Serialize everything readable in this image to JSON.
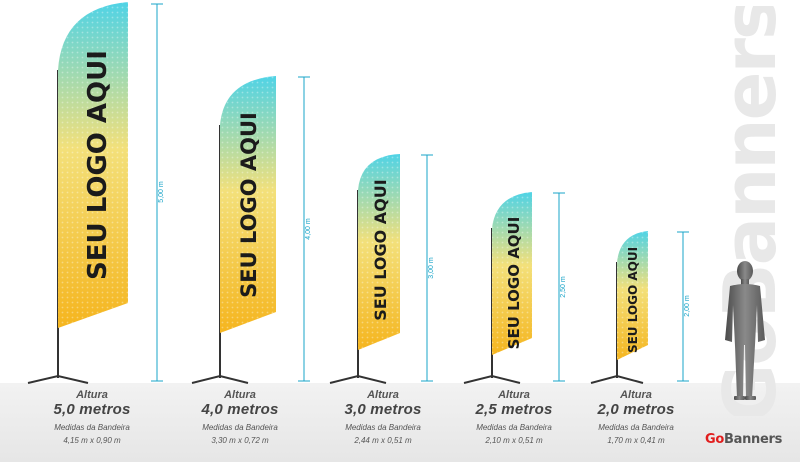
{
  "watermark": "GoBanners",
  "brand": {
    "go": "Go",
    "name": "Banners"
  },
  "flags": [
    {
      "logo_text": "SEU LOGO AQUI",
      "dimension_label": "5,00 m",
      "altura_label": "Altura",
      "height_label": "5,0 metros",
      "medidas_label": "Medidas da Bandeira",
      "size": "4,15 m x 0,90 m"
    },
    {
      "logo_text": "SEU LOGO AQUI",
      "dimension_label": "4,00 m",
      "altura_label": "Altura",
      "height_label": "4,0 metros",
      "medidas_label": "Medidas da Bandeira",
      "size": "3,30 m x 0,72 m"
    },
    {
      "logo_text": "SEU LOGO AQUI",
      "dimension_label": "3,00 m",
      "altura_label": "Altura",
      "height_label": "3,0 metros",
      "medidas_label": "Medidas da Bandeira",
      "size": "2,44 m x 0,51 m"
    },
    {
      "logo_text": "SEU LOGO AQUI",
      "dimension_label": "2,50 m",
      "altura_label": "Altura",
      "height_label": "2,5 metros",
      "medidas_label": "Medidas da Bandeira",
      "size": "2,10 m x 0,51 m"
    },
    {
      "logo_text": "SEU LOGO AQUI",
      "dimension_label": "2,00 m",
      "altura_label": "Altura",
      "height_label": "2,0 metros",
      "medidas_label": "Medidas da Bandeira",
      "size": "1,70 m x 0,41 m"
    }
  ],
  "colors": {
    "flag_top": "#4fd3e6",
    "flag_bottom": "#f5b51e",
    "dimension_line": "#1aa4c8",
    "brand_red": "#e11d1d"
  }
}
